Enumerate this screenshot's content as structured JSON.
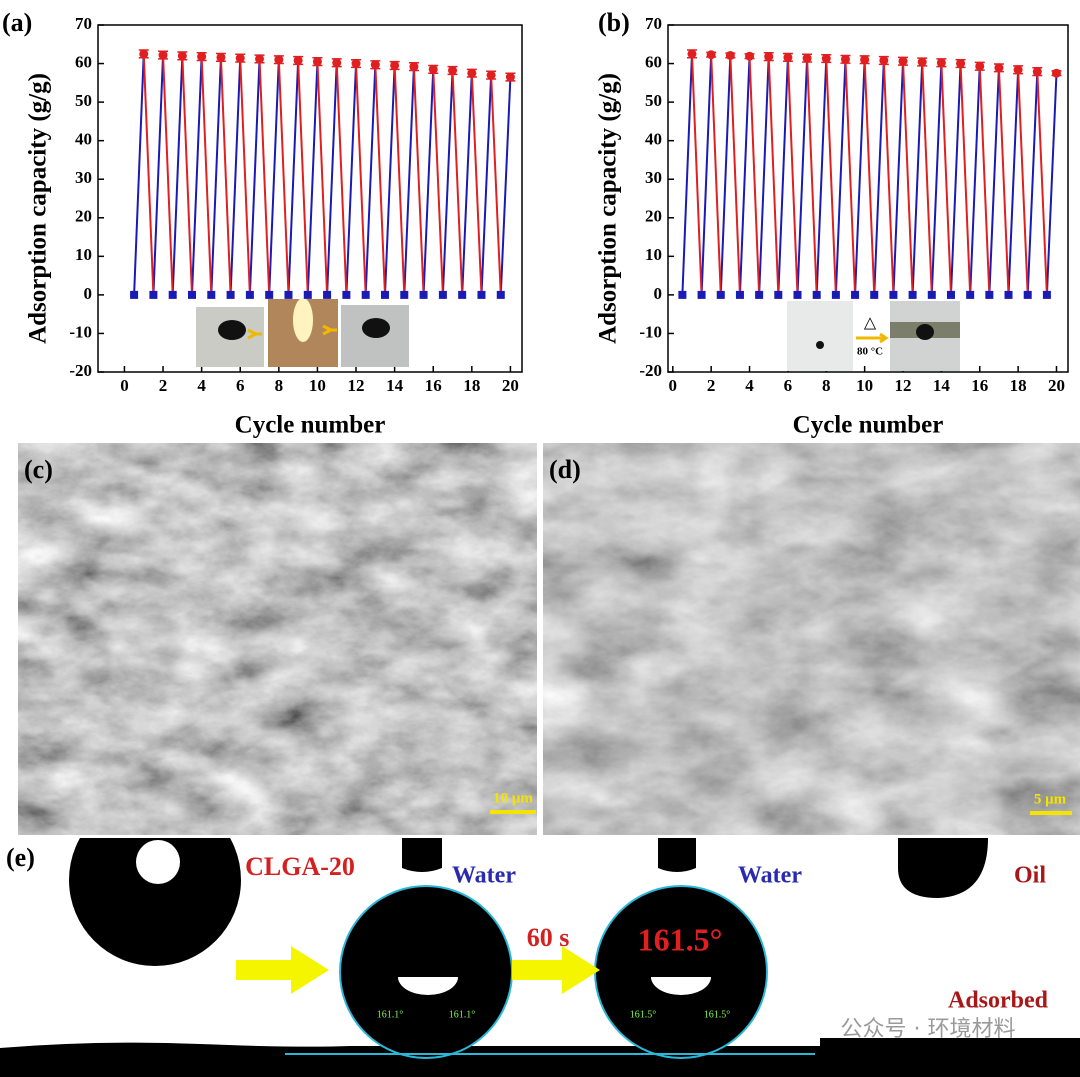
{
  "chart_data": [
    {
      "type": "line",
      "panel_label": "(a)",
      "ylabel": "Adsorption capacity (g/g)",
      "xlabel": "Cycle number",
      "xlim": [
        -1.37,
        20.6
      ],
      "ylim": [
        -20,
        70
      ],
      "xticks": [
        0,
        2,
        4,
        6,
        8,
        10,
        12,
        14,
        16,
        18,
        20
      ],
      "yticks": [
        -20,
        -10,
        0,
        10,
        20,
        30,
        40,
        50,
        60,
        70
      ],
      "series": [
        {
          "color": "#e02020",
          "marker": "circle",
          "x": [
            1,
            2,
            3,
            4,
            5,
            6,
            7,
            8,
            9,
            10,
            11,
            12,
            13,
            14,
            15,
            16,
            17,
            18,
            19,
            20
          ],
          "values": [
            62.5,
            62.2,
            62.0,
            61.8,
            61.6,
            61.4,
            61.2,
            61.0,
            60.8,
            60.5,
            60.2,
            60.0,
            59.7,
            59.5,
            59.2,
            58.5,
            58.2,
            57.5,
            57.0,
            56.5
          ],
          "errors": [
            1,
            1,
            1,
            1,
            1,
            1,
            1,
            1,
            1,
            1,
            1,
            1,
            1,
            1,
            1,
            1,
            1,
            1,
            1,
            1
          ]
        },
        {
          "color": "#1a1ab4",
          "marker": "square",
          "x": [
            0.5,
            1.5,
            2.5,
            3.5,
            4.5,
            5.5,
            6.5,
            7.5,
            8.5,
            9.5,
            10.5,
            11.5,
            12.5,
            13.5,
            14.5,
            15.5,
            16.5,
            17.5,
            18.5,
            19.5
          ],
          "values": [
            0,
            0,
            0,
            0,
            0,
            0,
            0,
            0,
            0,
            0,
            0,
            0,
            0,
            0,
            0,
            0,
            0,
            0,
            0,
            0
          ]
        }
      ]
    },
    {
      "type": "line",
      "panel_label": "(b)",
      "ylabel": "Adsorption capacity (g/g)",
      "xlabel": "Cycle number",
      "xlim": [
        -0.25,
        20.6
      ],
      "ylim": [
        -20,
        70
      ],
      "xticks": [
        0,
        2,
        4,
        6,
        8,
        10,
        12,
        14,
        16,
        18,
        20
      ],
      "yticks": [
        -20,
        -10,
        0,
        10,
        20,
        30,
        40,
        50,
        60,
        70
      ],
      "inset_symbol": "△",
      "inset_text": "80 °C",
      "series": [
        {
          "color": "#e02020",
          "marker": "circle",
          "x": [
            1,
            2,
            3,
            4,
            5,
            6,
            7,
            8,
            9,
            10,
            11,
            12,
            13,
            14,
            15,
            16,
            17,
            18,
            19,
            20
          ],
          "values": [
            62.5,
            62.3,
            62.1,
            61.9,
            61.8,
            61.6,
            61.4,
            61.3,
            61.1,
            61.0,
            60.8,
            60.6,
            60.4,
            60.2,
            60.0,
            59.3,
            58.9,
            58.4,
            57.9,
            57.5
          ],
          "errors": [
            1,
            0.6,
            0.6,
            0.6,
            1,
            1,
            1,
            1,
            1,
            1,
            1,
            1,
            1,
            1,
            1,
            1,
            1,
            1,
            1,
            0.6
          ]
        },
        {
          "color": "#1a1ab4",
          "marker": "square",
          "x": [
            0.5,
            1.5,
            2.5,
            3.5,
            4.5,
            5.5,
            6.5,
            7.5,
            8.5,
            9.5,
            10.5,
            11.5,
            12.5,
            13.5,
            14.5,
            15.5,
            16.5,
            17.5,
            18.5,
            19.5
          ],
          "values": [
            0,
            0,
            0,
            0,
            0,
            0,
            0,
            0,
            0,
            0,
            0,
            0,
            0,
            0,
            0,
            0,
            0,
            0,
            0,
            0
          ]
        }
      ]
    }
  ],
  "panels": [
    {
      "label": "(c)",
      "scale_bar": "10 μm"
    },
    {
      "label": "(d)",
      "scale_bar": "5 μm"
    }
  ],
  "panel_e": {
    "label": "(e)",
    "sample": "CLGA-20",
    "water_1": "Water",
    "water_2": "Water",
    "oil": "Oil",
    "time": "60 s",
    "angle": "161.5°",
    "adsorbed": "Adsorbed",
    "small_angles": [
      "161.1°",
      "161.1°",
      "161.5°",
      "161.5°"
    ],
    "watermark": "公众号 · 环境材料"
  }
}
